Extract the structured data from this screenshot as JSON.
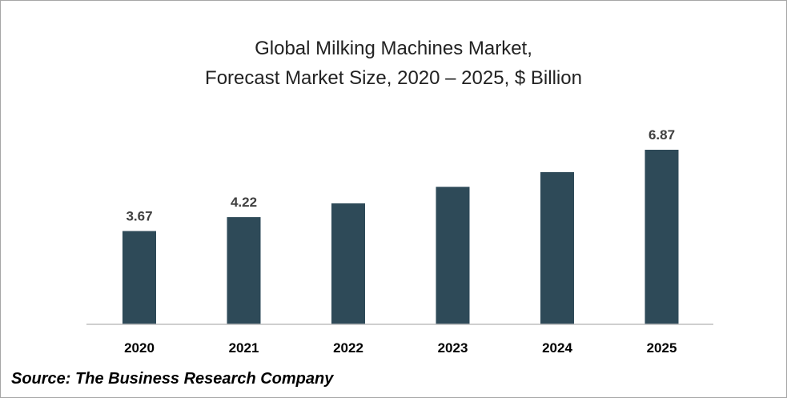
{
  "chart_data": {
    "type": "bar",
    "title_line1": "Global Milking Machines Market,",
    "title_line2": "Forecast Market Size, 2020 – 2025, $ Billion",
    "categories": [
      "2020",
      "2021",
      "2022",
      "2023",
      "2024",
      "2025"
    ],
    "values": [
      3.67,
      4.22,
      4.76,
      5.41,
      5.99,
      6.87
    ],
    "data_labels": [
      "3.67",
      "4.22",
      "",
      "",
      "",
      "6.87"
    ],
    "bar_color": "#2e4a58",
    "grid": false,
    "ylim": [
      0,
      7.5
    ]
  },
  "source": "Source: The Business Research Company"
}
